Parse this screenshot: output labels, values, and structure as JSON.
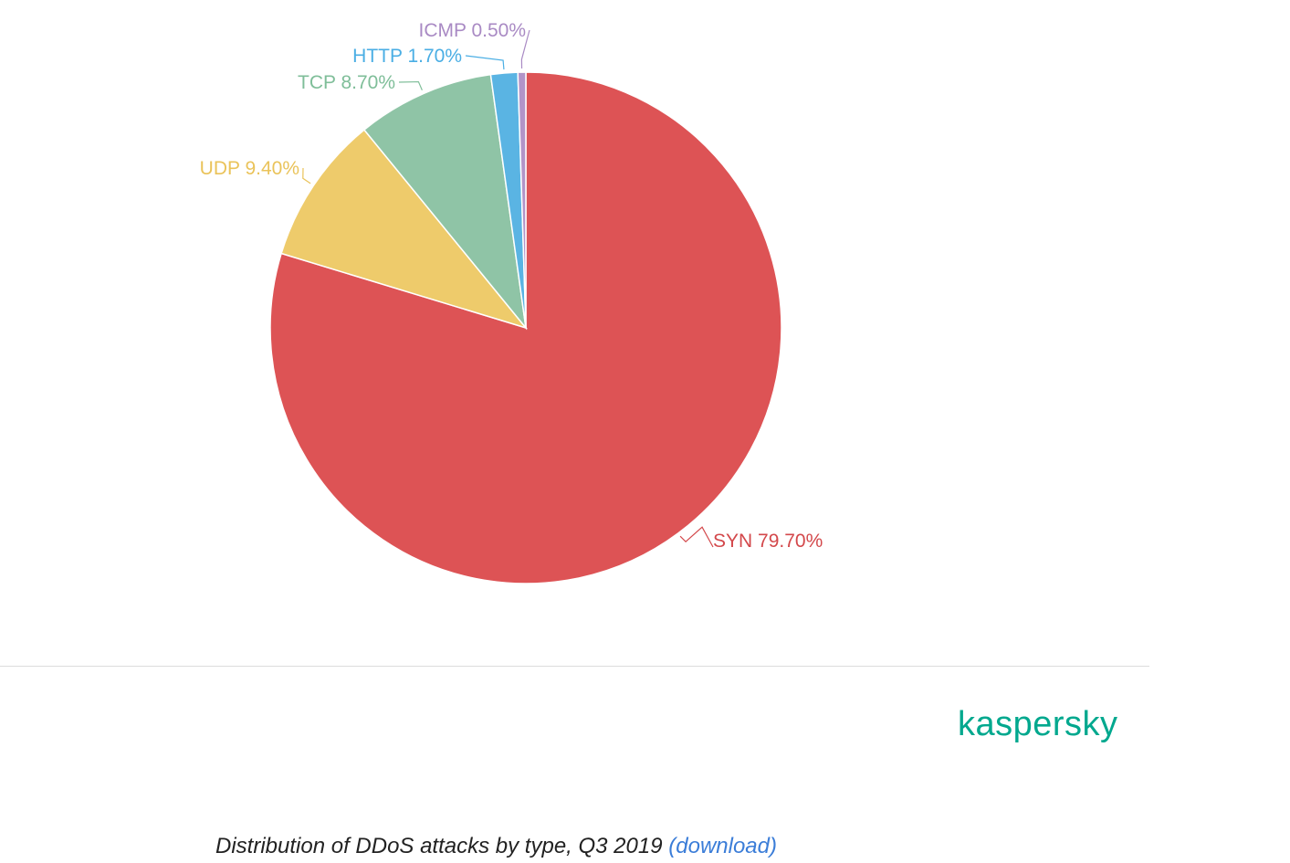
{
  "chart_data": {
    "type": "pie",
    "title": "",
    "categories": [
      "SYN",
      "UDP",
      "TCP",
      "HTTP",
      "ICMP"
    ],
    "values": [
      79.7,
      9.4,
      8.7,
      1.7,
      0.5
    ],
    "value_labels": [
      "79.70%",
      "9.40%",
      "8.70%",
      "1.70%",
      "0.50%"
    ],
    "colors": [
      "#dd5355",
      "#eecb6b",
      "#8fc4a6",
      "#5ab4e3",
      "#b294c8"
    ],
    "label_colors": [
      "#d3484b",
      "#eac35a",
      "#7fbe99",
      "#4aaee4",
      "#a98ac4"
    ],
    "start_angle": "12 o'clock",
    "direction": "clockwise",
    "legend": "none"
  },
  "logo": {
    "text": "kaspersky",
    "color": "#00a88e"
  },
  "caption": {
    "text": "Distribution of DDoS attacks by type, Q3 2019",
    "link_text": "(download)",
    "link_color": "#3b7dd8"
  }
}
